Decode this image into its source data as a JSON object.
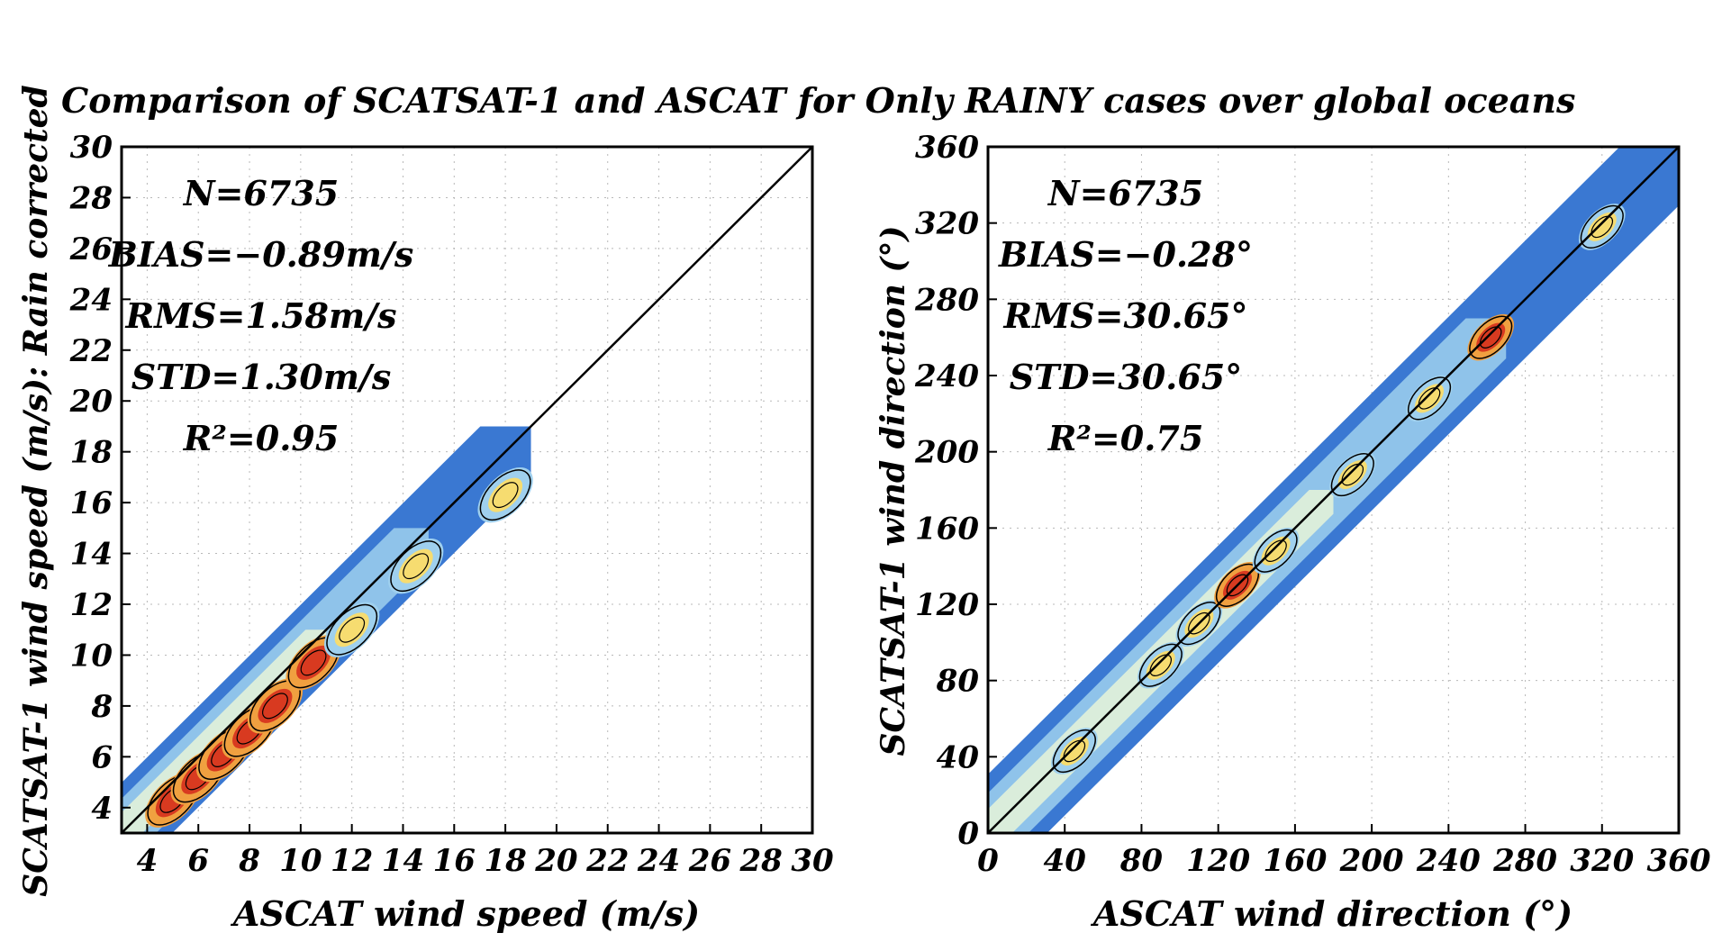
{
  "figure": {
    "title": "Comparison of SCATSAT-1 and ASCAT for Only RAINY cases over global oceans",
    "ylabel_left": "SCATSAT-1 wind speed (m/s): Rain corrected"
  },
  "chart_data": [
    {
      "type": "heatmap",
      "xlabel": "ASCAT wind speed (m/s)",
      "ylabel": "",
      "xlim": [
        3,
        30
      ],
      "ylim": [
        3,
        30
      ],
      "xticks": [
        4,
        6,
        8,
        10,
        12,
        14,
        16,
        18,
        20,
        22,
        24,
        26,
        28,
        30
      ],
      "yticks": [
        4,
        6,
        8,
        10,
        12,
        14,
        16,
        18,
        20,
        22,
        24,
        26,
        28,
        30
      ],
      "grid": true,
      "one_to_one_line": true,
      "stats": [
        "N=6735",
        "BIAS=−0.89m/s",
        "RMS=1.58m/s",
        "STD=1.30m/s",
        "R²=0.95"
      ],
      "density_centers": [
        [
          5.0,
          4.3
        ],
        [
          6.0,
          5.2
        ],
        [
          7.0,
          6.1
        ],
        [
          8.0,
          7.0
        ],
        [
          9.0,
          8.0
        ],
        [
          10.5,
          9.7
        ],
        [
          12.0,
          11.0
        ],
        [
          14.5,
          13.5
        ],
        [
          18.0,
          16.3
        ]
      ],
      "data_extent": {
        "x": [
          3,
          20
        ],
        "y": [
          3,
          18.5
        ]
      }
    },
    {
      "type": "heatmap",
      "xlabel": "ASCAT wind direction (°)",
      "ylabel": "SCATSAT-1 wind direction (°)",
      "xlim": [
        0,
        360
      ],
      "ylim": [
        0,
        360
      ],
      "xticks": [
        0,
        40,
        80,
        120,
        160,
        200,
        240,
        280,
        320,
        360
      ],
      "yticks": [
        0,
        40,
        80,
        120,
        160,
        200,
        240,
        280,
        320,
        360
      ],
      "grid": true,
      "one_to_one_line": true,
      "stats": [
        "N=6735",
        "BIAS=−0.28°",
        "RMS=30.65°",
        "STD=30.65°",
        "R²=0.75"
      ],
      "density_centers": [
        [
          45,
          43
        ],
        [
          90,
          88
        ],
        [
          110,
          110
        ],
        [
          130,
          130
        ],
        [
          150,
          148
        ],
        [
          190,
          188
        ],
        [
          230,
          228
        ],
        [
          262,
          260
        ],
        [
          320,
          318
        ]
      ],
      "data_extent": {
        "x": [
          0,
          360
        ],
        "y": [
          0,
          360
        ]
      }
    }
  ],
  "colors": {
    "blue": "#3a78d2",
    "light_blue": "#9fd0ee",
    "pale": "#e8f4d8",
    "yellow": "#f6dc70",
    "orange": "#f0a040",
    "red": "#d83a20",
    "dark_red": "#a81a10"
  }
}
